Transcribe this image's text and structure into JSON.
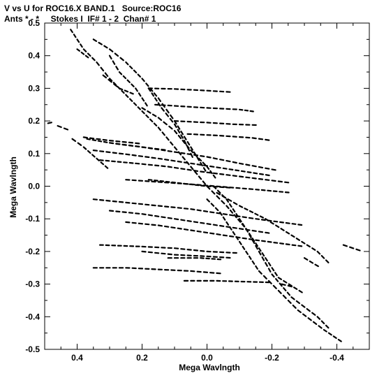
{
  "chart_data": {
    "type": "scatter",
    "title": "V vs U for ROC16.X BAND.1   Source:ROC16",
    "subtitle": "Ants * - *     Stokes I  IF# 1 - 2  Chan# 1",
    "xlabel": "Mega Wavlngth",
    "ylabel": "Mega Wavlngth",
    "xlim": [
      0.5,
      -0.5
    ],
    "ylim": [
      -0.5,
      0.5
    ],
    "x_ticks": [
      0.4,
      0.2,
      0.0,
      -0.2,
      -0.4
    ],
    "x_tick_labels": [
      "0.4",
      "0.2",
      "0.0",
      "-0.2",
      "-0.4"
    ],
    "y_ticks": [
      0.5,
      0.4,
      0.3,
      0.2,
      0.1,
      0.0,
      -0.1,
      -0.2,
      -0.3,
      -0.4,
      -0.5
    ],
    "y_tick_labels": [
      "0.5",
      "0.4",
      "0.3",
      "0.2",
      "0.1",
      "0.0",
      "-0.1",
      "-0.2",
      "-0.3",
      "-0.4",
      "-0.5"
    ],
    "grid": false,
    "legend": "none",
    "mark_color": "#000000",
    "series": [
      {
        "tracks": [
          [
            [
              0.49,
              0.193
            ],
            [
              0.47,
              0.197
            ]
          ],
          [
            [
              0.415,
              0.145
            ],
            [
              0.38,
              0.12
            ],
            [
              0.34,
              0.085
            ],
            [
              0.3,
              0.05
            ]
          ],
          [
            [
              0.37,
              0.145
            ],
            [
              0.3,
              0.133
            ],
            [
              0.2,
              0.12
            ],
            [
              0.1,
              0.105
            ],
            [
              0.0,
              0.09
            ],
            [
              -0.1,
              0.07
            ],
            [
              -0.22,
              0.048
            ]
          ],
          [
            [
              0.35,
              0.11
            ],
            [
              0.25,
              0.098
            ],
            [
              0.15,
              0.085
            ],
            [
              0.05,
              0.07
            ],
            [
              -0.05,
              0.055
            ],
            [
              -0.2,
              0.032
            ]
          ],
          [
            [
              0.33,
              0.08
            ],
            [
              0.22,
              0.07
            ],
            [
              0.12,
              0.06
            ],
            [
              0.02,
              0.045
            ],
            [
              -0.1,
              0.03
            ],
            [
              -0.26,
              0.01
            ]
          ],
          [
            [
              0.25,
              0.02
            ],
            [
              0.15,
              0.013
            ],
            [
              0.05,
              0.006
            ],
            [
              -0.05,
              -0.002
            ],
            [
              -0.15,
              -0.01
            ],
            [
              -0.26,
              -0.02
            ]
          ],
          [
            [
              0.18,
              0.02
            ],
            [
              0.09,
              0.01
            ],
            [
              0.0,
              0.0
            ],
            [
              -0.08,
              -0.005
            ]
          ],
          [
            [
              0.35,
              -0.04
            ],
            [
              0.25,
              -0.05
            ],
            [
              0.15,
              -0.06
            ],
            [
              0.05,
              -0.07
            ],
            [
              -0.05,
              -0.085
            ],
            [
              -0.15,
              -0.1
            ],
            [
              -0.3,
              -0.12
            ]
          ],
          [
            [
              0.3,
              -0.075
            ],
            [
              0.2,
              -0.085
            ],
            [
              0.1,
              -0.1
            ],
            [
              0.0,
              -0.115
            ],
            [
              -0.1,
              -0.13
            ],
            [
              -0.2,
              -0.145
            ]
          ],
          [
            [
              0.25,
              -0.11
            ],
            [
              0.15,
              -0.12
            ],
            [
              0.05,
              -0.135
            ],
            [
              -0.05,
              -0.15
            ],
            [
              -0.15,
              -0.165
            ],
            [
              -0.3,
              -0.185
            ]
          ],
          [
            [
              0.33,
              -0.18
            ],
            [
              0.2,
              -0.185
            ],
            [
              0.1,
              -0.19
            ],
            [
              0.0,
              -0.2
            ],
            [
              -0.1,
              -0.205
            ]
          ],
          [
            [
              0.12,
              -0.22
            ],
            [
              0.02,
              -0.22
            ],
            [
              -0.05,
              -0.225
            ]
          ],
          [
            [
              0.35,
              -0.25
            ],
            [
              0.25,
              -0.25
            ],
            [
              0.15,
              -0.255
            ],
            [
              0.05,
              -0.26
            ],
            [
              -0.05,
              -0.268
            ]
          ],
          [
            [
              0.07,
              -0.29
            ],
            [
              -0.03,
              -0.29
            ],
            [
              -0.2,
              -0.295
            ]
          ],
          [
            [
              0.2,
              -0.2
            ],
            [
              0.1,
              -0.21
            ],
            [
              0.0,
              -0.215
            ],
            [
              -0.08,
              -0.22
            ]
          ],
          [
            [
              0.46,
              0.185
            ],
            [
              0.42,
              0.17
            ]
          ],
          [
            [
              0.42,
              0.48
            ],
            [
              0.38,
              0.42
            ],
            [
              0.34,
              0.38
            ],
            [
              0.3,
              0.33
            ],
            [
              0.25,
              0.28
            ],
            [
              0.2,
              0.23
            ],
            [
              0.15,
              0.18
            ],
            [
              0.1,
              0.12
            ],
            [
              0.05,
              0.06
            ],
            [
              0.0,
              0.0
            ]
          ],
          [
            [
              0.18,
              0.3
            ],
            [
              0.1,
              0.298
            ],
            [
              0.0,
              0.293
            ],
            [
              -0.08,
              0.288
            ]
          ],
          [
            [
              0.16,
              0.25
            ],
            [
              0.08,
              0.245
            ],
            [
              0.0,
              0.24
            ],
            [
              -0.1,
              0.235
            ],
            [
              -0.15,
              0.228
            ]
          ],
          [
            [
              0.35,
              0.45
            ],
            [
              0.3,
              0.42
            ],
            [
              0.25,
              0.38
            ],
            [
              0.2,
              0.33
            ],
            [
              0.15,
              0.27
            ],
            [
              0.1,
              0.2
            ],
            [
              0.05,
              0.12
            ],
            [
              0.0,
              0.04
            ]
          ],
          [
            [
              0.1,
              0.2
            ],
            [
              0.0,
              0.195
            ],
            [
              -0.08,
              0.19
            ],
            [
              -0.16,
              0.187
            ]
          ],
          [
            [
              0.2,
              0.24
            ],
            [
              0.15,
              0.21
            ],
            [
              0.1,
              0.17
            ],
            [
              0.05,
              0.11
            ],
            [
              0.0,
              0.06
            ],
            [
              -0.03,
              0.02
            ]
          ],
          [
            [
              0.06,
              0.16
            ],
            [
              -0.04,
              0.155
            ],
            [
              -0.14,
              0.148
            ],
            [
              -0.2,
              0.14
            ]
          ],
          [
            [
              0.0,
              -0.04
            ],
            [
              -0.04,
              -0.08
            ],
            [
              -0.08,
              -0.14
            ],
            [
              -0.12,
              -0.2
            ],
            [
              -0.16,
              -0.26
            ],
            [
              -0.22,
              -0.32
            ],
            [
              -0.28,
              -0.38
            ],
            [
              -0.36,
              -0.44
            ],
            [
              -0.42,
              -0.48
            ]
          ],
          [
            [
              0.0,
              0.0
            ],
            [
              -0.06,
              -0.06
            ],
            [
              -0.12,
              -0.13
            ],
            [
              -0.16,
              -0.2
            ],
            [
              -0.2,
              -0.27
            ],
            [
              -0.26,
              -0.34
            ],
            [
              -0.34,
              -0.4
            ],
            [
              -0.38,
              -0.44
            ]
          ],
          [
            [
              -0.02,
              0.0
            ],
            [
              -0.06,
              -0.04
            ],
            [
              -0.1,
              -0.1
            ],
            [
              -0.14,
              -0.16
            ],
            [
              -0.18,
              -0.22
            ],
            [
              -0.22,
              -0.28
            ],
            [
              -0.3,
              -0.33
            ]
          ],
          [
            [
              -0.03,
              -0.02
            ],
            [
              -0.1,
              -0.06
            ],
            [
              -0.18,
              -0.1
            ],
            [
              -0.26,
              -0.15
            ],
            [
              -0.34,
              -0.2
            ],
            [
              -0.38,
              -0.24
            ]
          ],
          [
            [
              -0.23,
              -0.3
            ],
            [
              -0.27,
              -0.31
            ]
          ],
          [
            [
              -0.3,
              -0.22
            ],
            [
              -0.35,
              -0.25
            ]
          ],
          [
            [
              -0.42,
              -0.18
            ],
            [
              -0.48,
              -0.2
            ]
          ],
          [
            [
              0.4,
              0.42
            ],
            [
              0.36,
              0.39
            ]
          ],
          [
            [
              0.3,
              0.4
            ],
            [
              0.27,
              0.35
            ],
            [
              0.22,
              0.3
            ],
            [
              0.18,
              0.24
            ]
          ],
          [
            [
              0.18,
              0.3
            ],
            [
              0.14,
              0.24
            ],
            [
              0.1,
              0.19
            ],
            [
              0.07,
              0.14
            ],
            [
              0.04,
              0.08
            ]
          ],
          [
            [
              0.38,
              0.15
            ],
            [
              0.3,
              0.14
            ],
            [
              0.2,
              0.13
            ]
          ],
          [
            [
              0.32,
              0.34
            ],
            [
              0.27,
              0.3
            ],
            [
              0.22,
              0.28
            ]
          ],
          [
            [
              0.28,
              0.13
            ],
            [
              0.2,
              0.12
            ],
            [
              0.12,
              0.11
            ]
          ]
        ]
      }
    ]
  }
}
